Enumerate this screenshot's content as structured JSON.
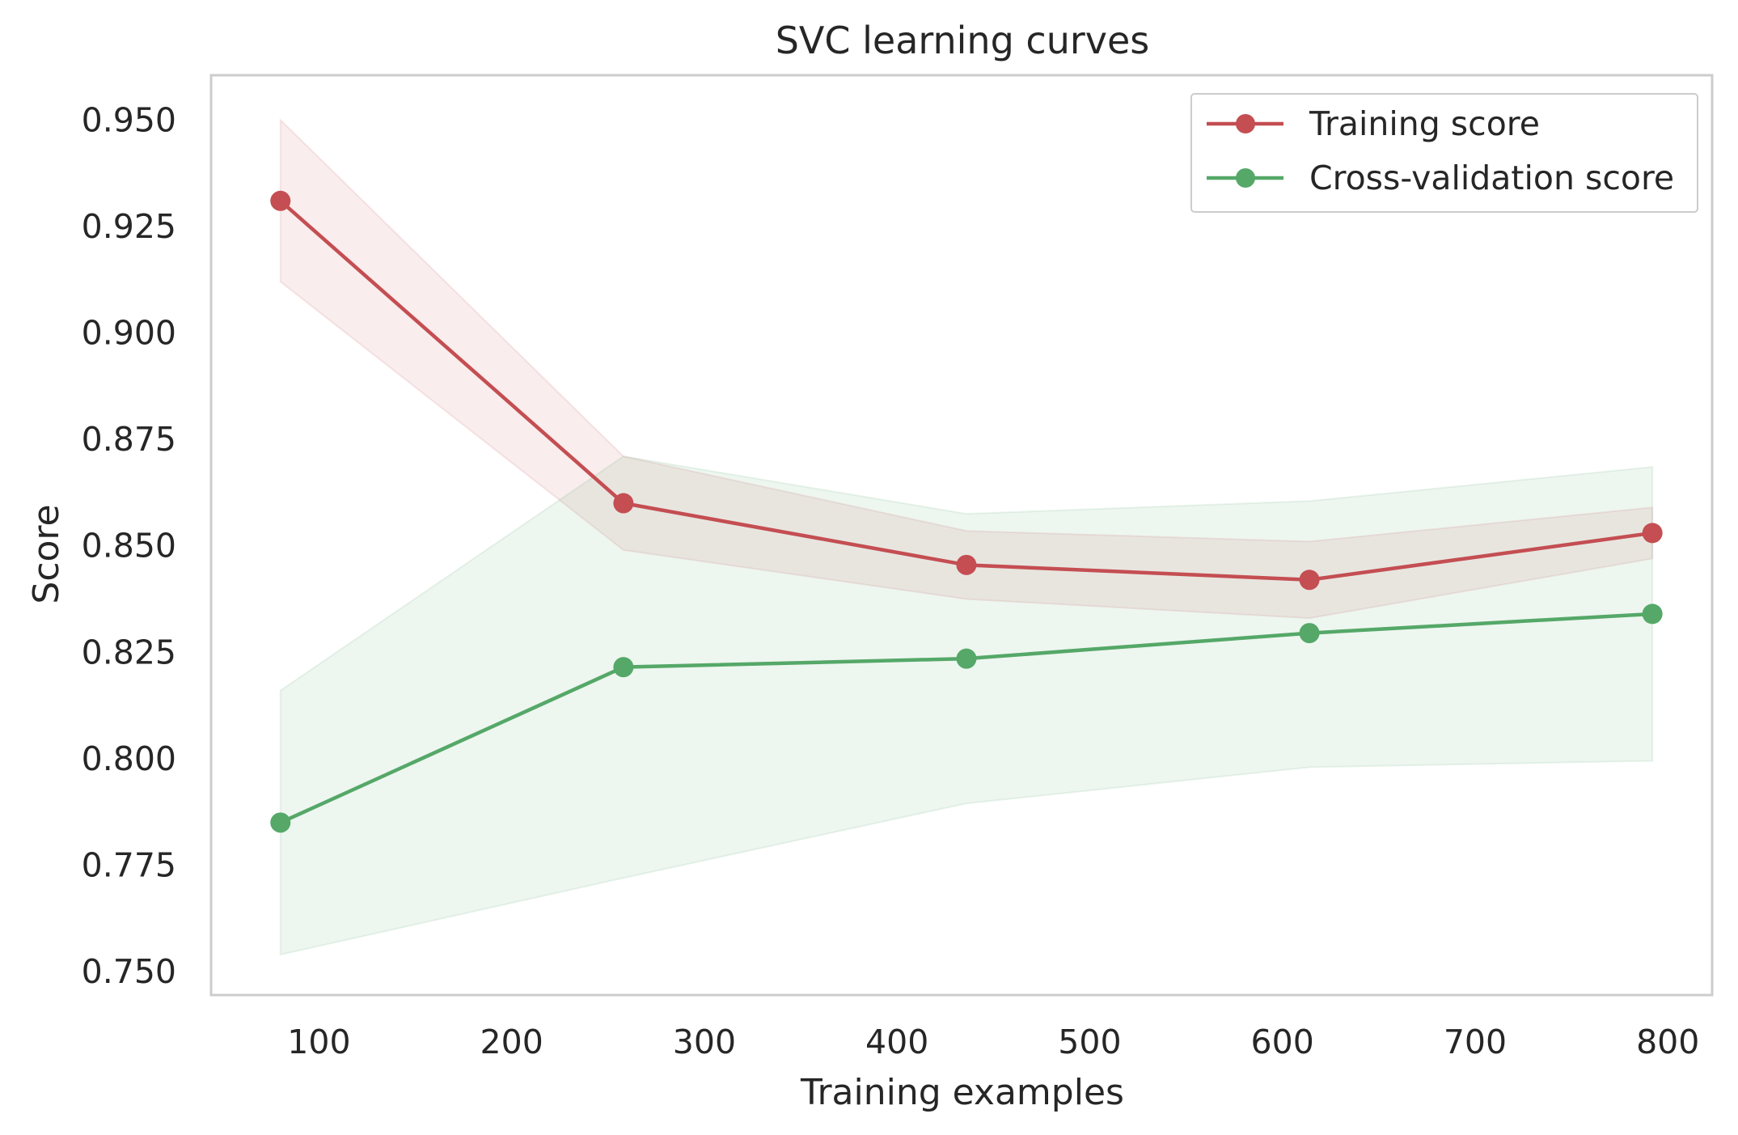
{
  "chart_data": {
    "type": "line",
    "title": "SVC learning curves",
    "xlabel": "Training examples",
    "ylabel": "Score",
    "xlim": [
      44,
      823
    ],
    "ylim": [
      0.7445,
      0.9605
    ],
    "xticks": [
      100,
      200,
      300,
      400,
      500,
      600,
      700,
      800
    ],
    "xtick_labels": [
      "100",
      "200",
      "300",
      "400",
      "500",
      "600",
      "700",
      "800"
    ],
    "yticks": [
      0.75,
      0.775,
      0.8,
      0.825,
      0.85,
      0.875,
      0.9,
      0.925,
      0.95
    ],
    "ytick_labels": [
      "0.750",
      "0.775",
      "0.800",
      "0.825",
      "0.850",
      "0.875",
      "0.900",
      "0.925",
      "0.950"
    ],
    "grid": false,
    "legend_position": "top-right",
    "x": [
      80,
      258,
      436,
      614,
      792
    ],
    "series": [
      {
        "name": "Training score",
        "color": "#c44e52",
        "band_color": "#c44e52",
        "values": [
          0.931,
          0.86,
          0.8455,
          0.842,
          0.853
        ],
        "lower": [
          0.912,
          0.849,
          0.8375,
          0.833,
          0.847
        ],
        "upper": [
          0.95,
          0.871,
          0.8535,
          0.851,
          0.859
        ]
      },
      {
        "name": "Cross-validation score",
        "color": "#55a868",
        "band_color": "#55a868",
        "values": [
          0.785,
          0.8215,
          0.8235,
          0.8295,
          0.834
        ],
        "lower": [
          0.754,
          0.772,
          0.7895,
          0.798,
          0.7995
        ],
        "upper": [
          0.816,
          0.871,
          0.8575,
          0.8605,
          0.8685
        ]
      }
    ]
  }
}
